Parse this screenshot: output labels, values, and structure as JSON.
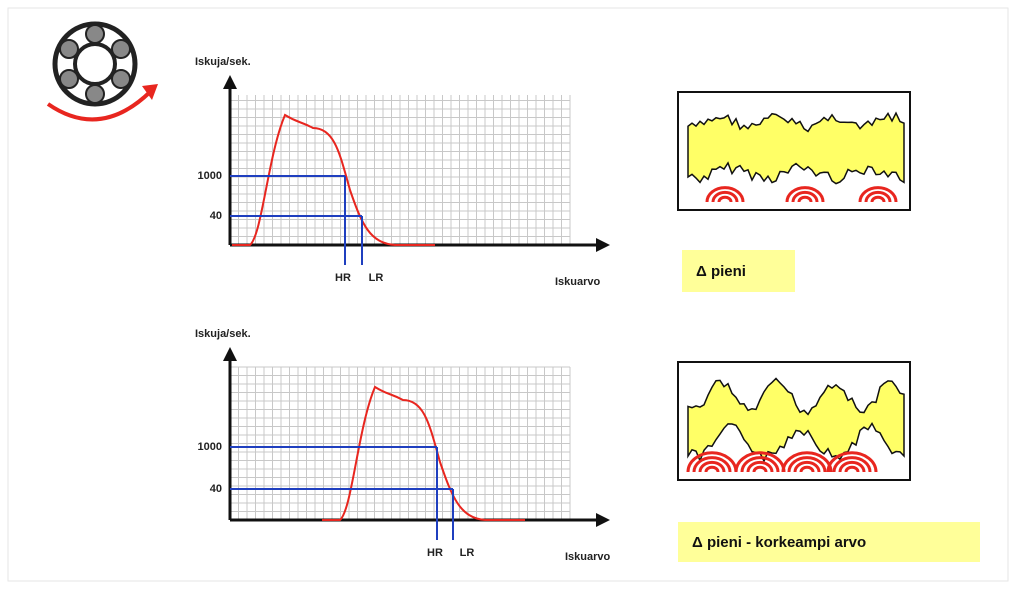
{
  "panels": [
    {
      "y_axis_label": "Iskuja/sek.",
      "ticks": [
        "1000",
        "40"
      ],
      "markers": [
        "HR",
        "LR"
      ],
      "x_axis_label": "Iskuarvo",
      "caption": "Δ pieni"
    },
    {
      "y_axis_label": "Iskuja/sek.",
      "ticks": [
        "1000",
        "40"
      ],
      "markers": [
        "HR",
        "LR"
      ],
      "x_axis_label": "Iskuarvo",
      "caption": "Δ pieni - korkeampi arvo"
    }
  ]
}
